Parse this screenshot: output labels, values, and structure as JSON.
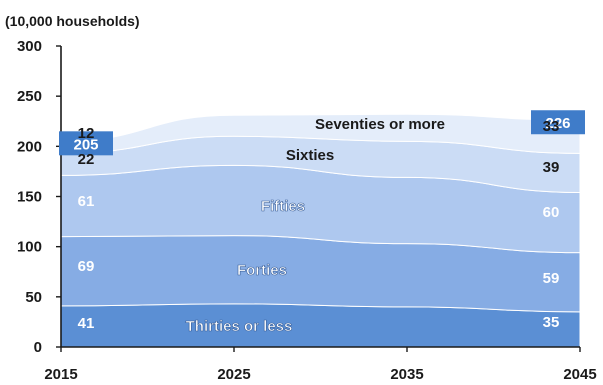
{
  "chart_data": {
    "type": "area",
    "stacked": true,
    "unit_label": "(10,000 households)",
    "x": [
      2015,
      2025,
      2035,
      2045
    ],
    "xticks": [
      "2015",
      "2025",
      "2035",
      "2045"
    ],
    "yticks": [
      "0",
      "50",
      "100",
      "150",
      "200",
      "250",
      "300"
    ],
    "ylim": [
      0,
      300
    ],
    "series": [
      {
        "name": "Thirties or less",
        "color": "#5b8fd4",
        "start": 41,
        "end": 35,
        "values": [
          41,
          43,
          40,
          35
        ],
        "start_label": "41",
        "end_label": "35"
      },
      {
        "name": "Forties",
        "color": "#86ace4",
        "start": 69,
        "end": 59,
        "values": [
          69,
          68,
          63,
          59
        ],
        "start_label": "69",
        "end_label": "59"
      },
      {
        "name": "Fifties",
        "color": "#aec8ef",
        "start": 61,
        "end": 60,
        "values": [
          61,
          70,
          66,
          60
        ],
        "start_label": "61",
        "end_label": "60"
      },
      {
        "name": "Sixties",
        "color": "#cbdcf5",
        "start": 22,
        "end": 39,
        "values": [
          22,
          29,
          36,
          39
        ],
        "start_label": "22",
        "end_label": "39"
      },
      {
        "name": "Seventies or more",
        "color": "#e4edfa",
        "start": 12,
        "end": 33,
        "values": [
          12,
          21,
          27,
          33
        ],
        "start_label": "12",
        "end_label": "33"
      }
    ],
    "totals": {
      "start": 205,
      "end": 226,
      "start_label": "205",
      "end_label": "226"
    },
    "grid": false
  }
}
